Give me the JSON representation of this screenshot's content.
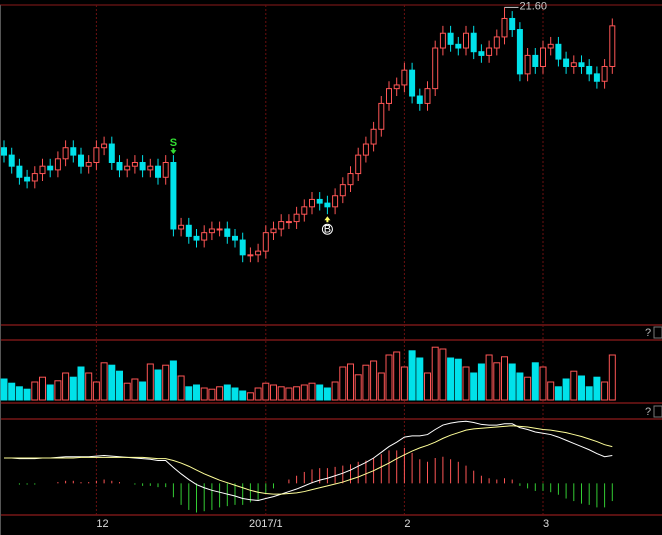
{
  "chart_data": {
    "type": "candlestick",
    "categories": [
      null,
      null,
      null,
      null,
      null,
      null,
      null,
      null,
      null,
      null,
      null,
      null,
      "12",
      null,
      null,
      null,
      null,
      null,
      null,
      null,
      null,
      null,
      null,
      null,
      null,
      null,
      null,
      null,
      null,
      null,
      null,
      null,
      null,
      null,
      "2017/1",
      null,
      null,
      null,
      null,
      null,
      null,
      null,
      null,
      null,
      null,
      null,
      null,
      null,
      null,
      null,
      null,
      null,
      "2",
      null,
      null,
      null,
      null,
      null,
      null,
      null,
      null,
      null,
      null,
      null,
      null,
      null,
      null,
      null,
      null,
      null,
      "3",
      null,
      null,
      null,
      null,
      null,
      null,
      null,
      null,
      null
    ],
    "open": [
      17.8,
      17.6,
      17.3,
      17.0,
      16.9,
      17.1,
      17.3,
      17.2,
      17.5,
      17.8,
      17.6,
      17.3,
      17.4,
      17.8,
      17.9,
      17.4,
      17.2,
      17.3,
      17.4,
      17.2,
      17.3,
      17.0,
      17.4,
      15.6,
      15.7,
      15.4,
      15.3,
      15.5,
      15.6,
      15.6,
      15.4,
      15.3,
      14.9,
      14.9,
      15.0,
      15.5,
      15.6,
      15.8,
      15.8,
      16.0,
      16.2,
      16.4,
      16.3,
      16.2,
      16.5,
      16.8,
      17.1,
      17.6,
      17.9,
      18.3,
      19.0,
      19.4,
      19.5,
      19.9,
      19.2,
      19.0,
      19.4,
      20.5,
      20.9,
      20.6,
      20.5,
      20.9,
      20.4,
      20.3,
      20.5,
      20.8,
      21.3,
      21.0,
      19.8,
      20.3,
      20.0,
      20.5,
      20.6,
      20.2,
      20.0,
      20.1,
      20.0,
      19.8,
      19.6,
      20.0
    ],
    "high": [
      18.0,
      17.8,
      17.5,
      17.2,
      17.3,
      17.5,
      17.5,
      17.7,
      18.0,
      18.0,
      17.8,
      17.6,
      18.0,
      18.1,
      18.1,
      17.6,
      17.5,
      17.6,
      17.6,
      17.5,
      17.5,
      17.6,
      17.6,
      15.9,
      15.9,
      15.6,
      15.7,
      15.8,
      15.8,
      15.8,
      15.6,
      15.5,
      15.1,
      15.2,
      15.7,
      15.8,
      16.0,
      16.0,
      16.2,
      16.4,
      16.6,
      16.6,
      16.5,
      16.7,
      17.0,
      17.3,
      17.8,
      18.1,
      18.5,
      19.2,
      19.6,
      19.7,
      20.1,
      20.1,
      19.4,
      19.6,
      20.7,
      21.1,
      21.1,
      20.8,
      21.1,
      21.1,
      20.6,
      20.7,
      21.0,
      21.6,
      21.5,
      21.2,
      20.5,
      20.5,
      20.7,
      20.8,
      20.8,
      20.4,
      20.3,
      20.3,
      20.2,
      20.0,
      20.2,
      21.3
    ],
    "low": [
      17.4,
      17.1,
      16.8,
      16.7,
      16.7,
      16.9,
      17.0,
      17.0,
      17.3,
      17.4,
      17.1,
      17.1,
      17.2,
      17.6,
      17.2,
      17.0,
      17.0,
      17.1,
      17.0,
      17.0,
      16.8,
      16.8,
      15.4,
      15.4,
      15.2,
      15.1,
      15.1,
      15.3,
      15.4,
      15.2,
      15.1,
      14.7,
      14.7,
      14.7,
      14.8,
      15.3,
      15.4,
      15.6,
      15.6,
      15.8,
      16.0,
      16.1,
      16.0,
      16.0,
      16.3,
      16.6,
      16.9,
      17.4,
      17.7,
      18.1,
      18.8,
      19.2,
      19.3,
      19.0,
      18.8,
      18.8,
      19.2,
      20.3,
      20.4,
      20.3,
      20.3,
      20.2,
      20.1,
      20.1,
      20.3,
      20.6,
      20.8,
      19.6,
      19.6,
      19.8,
      19.8,
      20.3,
      20.0,
      19.8,
      19.8,
      19.8,
      19.6,
      19.4,
      19.4,
      19.8
    ],
    "close": [
      17.6,
      17.3,
      17.0,
      16.9,
      17.1,
      17.3,
      17.2,
      17.5,
      17.8,
      17.6,
      17.3,
      17.4,
      17.8,
      17.9,
      17.4,
      17.2,
      17.3,
      17.4,
      17.2,
      17.3,
      17.0,
      17.4,
      15.6,
      15.7,
      15.4,
      15.3,
      15.5,
      15.6,
      15.6,
      15.4,
      15.3,
      14.9,
      14.9,
      15.0,
      15.5,
      15.6,
      15.8,
      15.8,
      16.0,
      16.2,
      16.4,
      16.3,
      16.2,
      16.5,
      16.8,
      17.1,
      17.6,
      17.9,
      18.3,
      19.0,
      19.4,
      19.5,
      19.9,
      19.2,
      19.0,
      19.4,
      20.5,
      20.9,
      20.6,
      20.5,
      20.9,
      20.4,
      20.3,
      20.5,
      20.8,
      21.3,
      21.0,
      19.8,
      20.3,
      20.0,
      20.5,
      20.6,
      20.2,
      20.0,
      20.1,
      20.0,
      19.8,
      19.6,
      20.0,
      21.1
    ],
    "up_color": "#ff5656",
    "down_color": "#00e2ea",
    "ylim": [
      13.0,
      21.8
    ],
    "max_label": {
      "value": 21.6,
      "label": "21.60"
    },
    "signals": [
      {
        "label": "S",
        "index": 22,
        "color": "#33dd33"
      },
      {
        "label": "B",
        "index": 42,
        "color": "#ffffff"
      }
    ],
    "help": [
      "?",
      "?"
    ],
    "volume": {
      "type": "bar",
      "ylim": [
        0,
        100
      ],
      "values": [
        35,
        28,
        22,
        18,
        30,
        38,
        25,
        32,
        45,
        38,
        55,
        45,
        30,
        62,
        58,
        48,
        28,
        35,
        30,
        60,
        50,
        58,
        65,
        40,
        22,
        25,
        20,
        18,
        22,
        25,
        20,
        15,
        12,
        20,
        28,
        25,
        22,
        20,
        22,
        25,
        28,
        25,
        20,
        30,
        55,
        60,
        42,
        58,
        65,
        45,
        75,
        80,
        55,
        82,
        70,
        45,
        88,
        85,
        70,
        68,
        55,
        45,
        60,
        75,
        62,
        72,
        60,
        45,
        38,
        62,
        55,
        30,
        22,
        35,
        48,
        40,
        22,
        38,
        30,
        75
      ]
    },
    "macd": {
      "type": "line",
      "ylim": [
        -0.5,
        1.0
      ],
      "pos_color": "#ff5656",
      "neg_color": "#33cc33",
      "histogram": [
        0,
        0,
        -0.02,
        -0.02,
        -0.02,
        0,
        0,
        0.02,
        0.04,
        0.04,
        0.02,
        0.02,
        0.04,
        0.06,
        0.04,
        0.02,
        0,
        -0.02,
        -0.04,
        -0.04,
        -0.06,
        -0.06,
        -0.22,
        -0.34,
        -0.42,
        -0.46,
        -0.44,
        -0.42,
        -0.38,
        -0.36,
        -0.34,
        -0.34,
        -0.3,
        -0.26,
        -0.16,
        -0.08,
        0,
        0.06,
        0.12,
        0.18,
        0.22,
        0.24,
        0.24,
        0.26,
        0.28,
        0.3,
        0.34,
        0.36,
        0.4,
        0.46,
        0.52,
        0.52,
        0.56,
        0.48,
        0.38,
        0.34,
        0.4,
        0.42,
        0.38,
        0.34,
        0.28,
        0.2,
        0.12,
        0.08,
        0.06,
        0.08,
        0.06,
        -0.04,
        -0.08,
        -0.12,
        -0.12,
        -0.14,
        -0.18,
        -0.24,
        -0.28,
        -0.32,
        -0.34,
        -0.38,
        -0.38,
        -0.28
      ],
      "series": [
        {
          "color": "#ffffff",
          "values": [
            0.4,
            0.4,
            0.39,
            0.39,
            0.39,
            0.4,
            0.4,
            0.41,
            0.42,
            0.42,
            0.42,
            0.42,
            0.43,
            0.44,
            0.43,
            0.42,
            0.41,
            0.4,
            0.39,
            0.38,
            0.36,
            0.36,
            0.25,
            0.15,
            0.06,
            -0.02,
            -0.07,
            -0.11,
            -0.14,
            -0.17,
            -0.2,
            -0.24,
            -0.26,
            -0.27,
            -0.24,
            -0.21,
            -0.17,
            -0.13,
            -0.09,
            -0.04,
            0.01,
            0.05,
            0.08,
            0.12,
            0.16,
            0.21,
            0.27,
            0.33,
            0.4,
            0.49,
            0.58,
            0.65,
            0.73,
            0.75,
            0.75,
            0.77,
            0.85,
            0.92,
            0.95,
            0.97,
            0.98,
            0.96,
            0.93,
            0.92,
            0.92,
            0.94,
            0.94,
            0.88,
            0.85,
            0.81,
            0.79,
            0.77,
            0.73,
            0.68,
            0.63,
            0.58,
            0.53,
            0.47,
            0.42,
            0.44
          ]
        },
        {
          "color": "#ffff99",
          "values": [
            0.4,
            0.4,
            0.4,
            0.4,
            0.4,
            0.4,
            0.4,
            0.4,
            0.4,
            0.4,
            0.41,
            0.41,
            0.41,
            0.41,
            0.41,
            0.41,
            0.41,
            0.41,
            0.41,
            0.4,
            0.39,
            0.39,
            0.36,
            0.32,
            0.27,
            0.21,
            0.15,
            0.1,
            0.05,
            0.01,
            -0.03,
            -0.07,
            -0.11,
            -0.14,
            -0.16,
            -0.17,
            -0.17,
            -0.16,
            -0.15,
            -0.13,
            -0.1,
            -0.07,
            -0.04,
            -0.01,
            0.02,
            0.06,
            0.1,
            0.15,
            0.2,
            0.26,
            0.32,
            0.39,
            0.45,
            0.51,
            0.56,
            0.6,
            0.65,
            0.71,
            0.76,
            0.8,
            0.84,
            0.86,
            0.87,
            0.88,
            0.89,
            0.9,
            0.91,
            0.9,
            0.89,
            0.87,
            0.85,
            0.84,
            0.82,
            0.8,
            0.77,
            0.74,
            0.7,
            0.66,
            0.61,
            0.58
          ]
        }
      ]
    }
  }
}
